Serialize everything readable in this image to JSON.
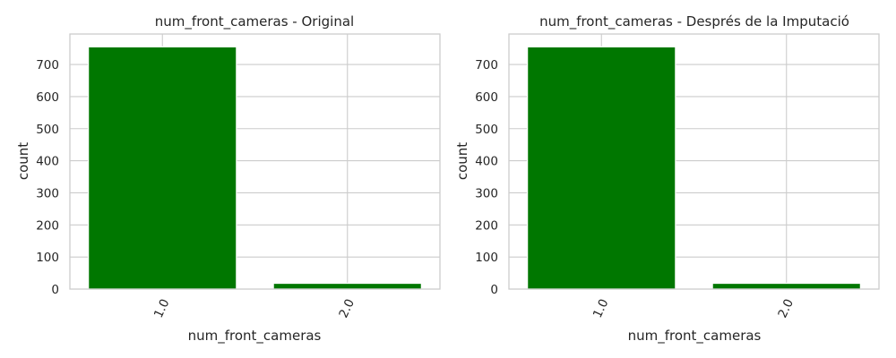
{
  "chart_data": [
    {
      "type": "bar",
      "title": "num_front_cameras - Original",
      "xlabel": "num_front_cameras",
      "ylabel": "count",
      "categories": [
        "1.0",
        "2.0"
      ],
      "values": [
        755,
        18
      ],
      "ylim": [
        0,
        795
      ],
      "yticks": [
        0,
        100,
        200,
        300,
        400,
        500,
        600,
        700
      ],
      "grid": true,
      "bar_color": "#007700"
    },
    {
      "type": "bar",
      "title": "num_front_cameras - Després de la Imputació",
      "xlabel": "num_front_cameras",
      "ylabel": "count",
      "categories": [
        "1.0",
        "2.0"
      ],
      "values": [
        755,
        18
      ],
      "ylim": [
        0,
        795
      ],
      "yticks": [
        0,
        100,
        200,
        300,
        400,
        500,
        600,
        700
      ],
      "grid": true,
      "bar_color": "#007700"
    }
  ],
  "colors": {
    "grid": "#cccccc",
    "text": "#262626",
    "background": "#ffffff"
  }
}
